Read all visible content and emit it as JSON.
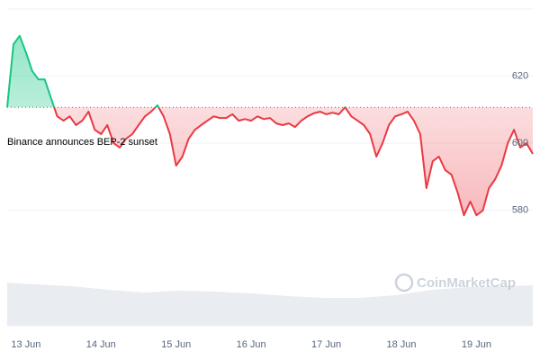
{
  "chart_data": {
    "type": "line",
    "annotation": "Binance announces BEP-2 sunset",
    "watermark": "CoinMarketCap",
    "categories": [
      null,
      null,
      null,
      "13 Jun",
      null,
      null,
      null,
      null,
      null,
      null,
      null,
      null,
      null,
      null,
      null,
      "14 Jun",
      null,
      null,
      null,
      null,
      null,
      null,
      null,
      null,
      null,
      null,
      null,
      "15 Jun",
      null,
      null,
      null,
      null,
      null,
      null,
      null,
      null,
      null,
      null,
      null,
      "16 Jun",
      null,
      null,
      null,
      null,
      null,
      null,
      null,
      null,
      null,
      null,
      null,
      "17 Jun",
      null,
      null,
      null,
      null,
      null,
      null,
      null,
      null,
      null,
      null,
      null,
      "18 Jun",
      null,
      null,
      null,
      null,
      null,
      null,
      null,
      null,
      null,
      null,
      null,
      "19 Jun",
      null,
      null,
      null,
      null,
      null,
      null,
      null,
      null,
      null
    ],
    "values": [
      610.7,
      629.5,
      632,
      627,
      621.5,
      619,
      619,
      613.4,
      608,
      606.7,
      608,
      605.4,
      606.7,
      609.4,
      604,
      602.7,
      605.4,
      600,
      598.7,
      601.3,
      602.7,
      605.4,
      608,
      609.4,
      611.3,
      608,
      602.7,
      593.3,
      596,
      601.3,
      604,
      605.4,
      606.7,
      608,
      607.5,
      607.5,
      608.6,
      606.7,
      607.2,
      606.7,
      608,
      607.2,
      607.5,
      605.9,
      605.4,
      605.9,
      604.8,
      606.7,
      608,
      608.9,
      609.4,
      608.6,
      609.1,
      608.6,
      610.7,
      608,
      606.7,
      605.4,
      602.7,
      596,
      600,
      605.4,
      608,
      608.6,
      609.4,
      606.7,
      602.7,
      586.6,
      594.6,
      596,
      592,
      590.6,
      585.2,
      578.5,
      582.6,
      578.5,
      579.9,
      586.6,
      589.3,
      593.3,
      600,
      604,
      598.7,
      600,
      596.8
    ],
    "up_color": "#16c784",
    "down_color": "#ea3943",
    "ylim": [
      563,
      640
    ],
    "yticks": [
      580,
      600,
      620
    ],
    "grid": true
  }
}
